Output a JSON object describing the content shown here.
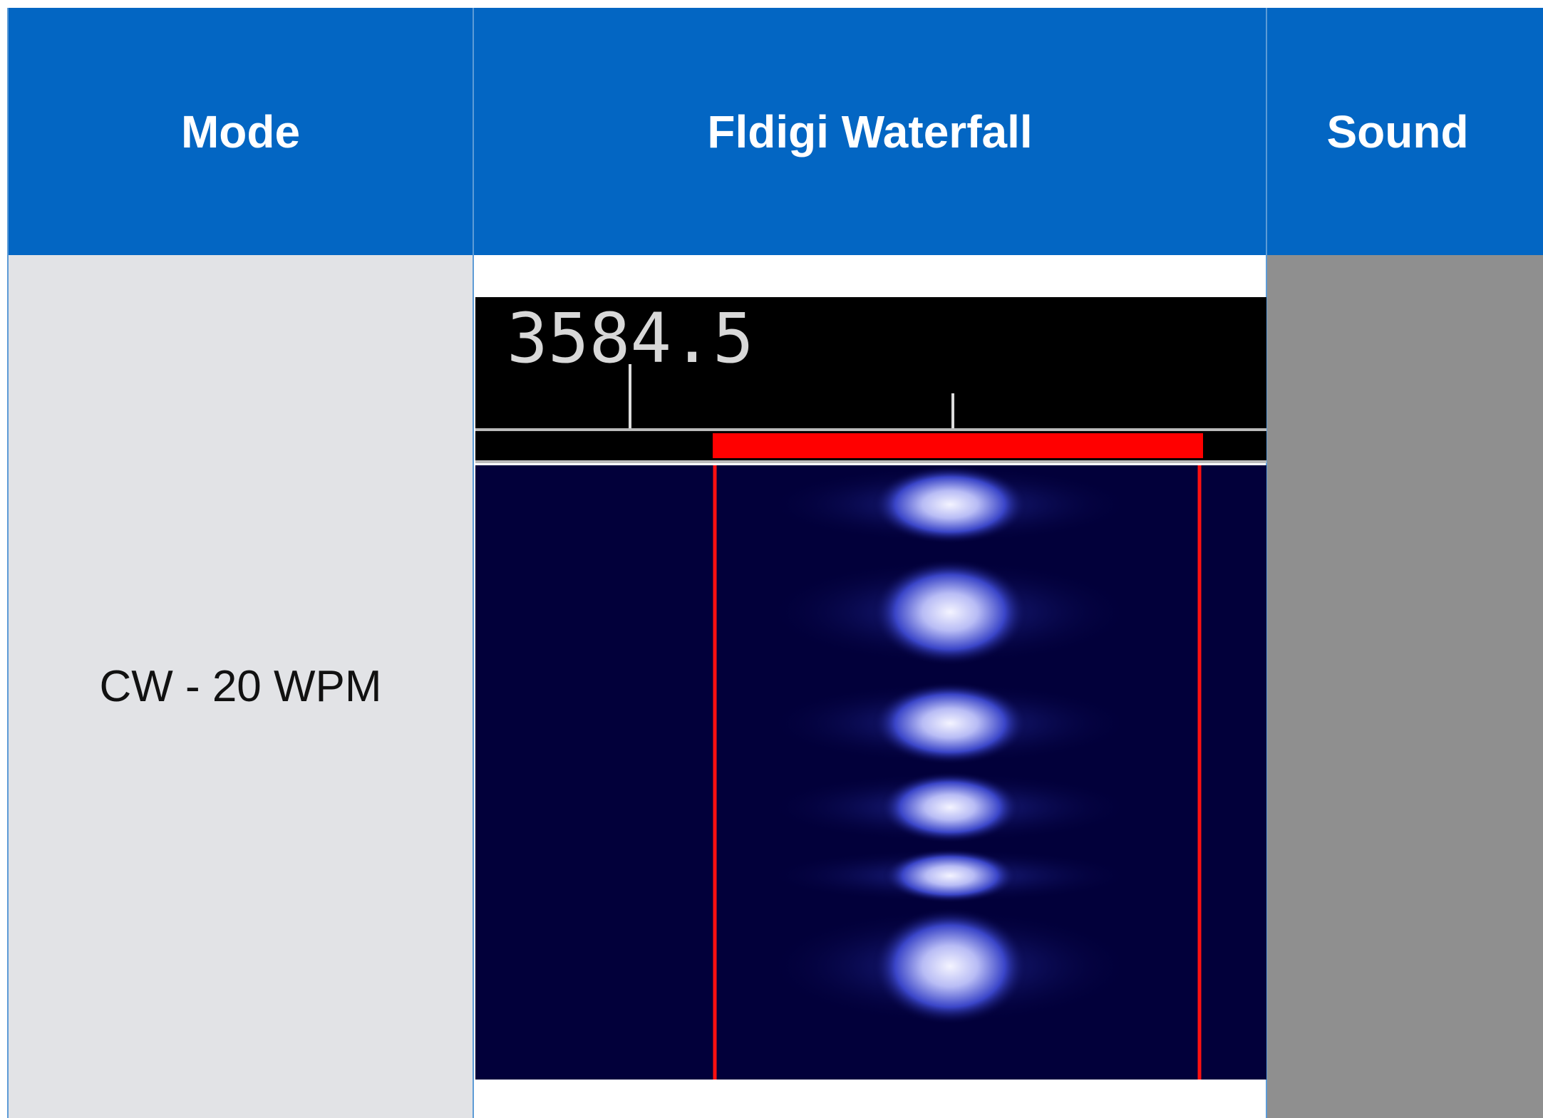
{
  "table": {
    "headers": [
      "Mode",
      "Fldigi Waterfall",
      "Sound"
    ],
    "rows": [
      [
        "CW - 20 WPM"
      ]
    ]
  },
  "waterfall": {
    "frequency_label": "3584.5"
  }
}
